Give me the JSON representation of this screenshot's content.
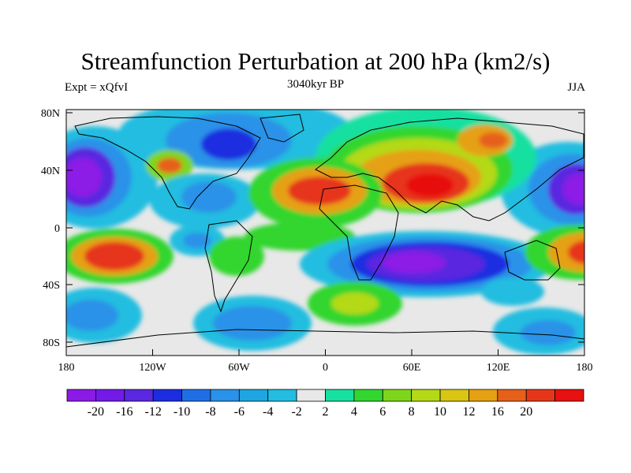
{
  "title": "Streamfunction Perturbation at 200 hPa (km2/s)",
  "left_label": "Expt = xQfvI",
  "center_label": "3040kyr BP",
  "right_label": "JJA",
  "y_ticks": [
    "80N",
    "40N",
    "0",
    "40S",
    "80S"
  ],
  "x_ticks": [
    "180",
    "120W",
    "60W",
    "0",
    "60E",
    "120E",
    "180"
  ],
  "colorbar": {
    "colors": [
      "#8c1ae6",
      "#7319e8",
      "#5a28e0",
      "#1c2de0",
      "#1f6ee6",
      "#2a92e8",
      "#1ea6e0",
      "#22bde0",
      "#e8e8e8",
      "#17e0a0",
      "#33d62e",
      "#7ed61c",
      "#b4d916",
      "#d9c514",
      "#e6a014",
      "#e6601a",
      "#e6361a",
      "#e81010"
    ],
    "labels": [
      "-20",
      "-16",
      "-12",
      "-10",
      "-8",
      "-6",
      "-4",
      "-2",
      "2",
      "4",
      "6",
      "8",
      "10",
      "12",
      "16",
      "20"
    ]
  }
}
